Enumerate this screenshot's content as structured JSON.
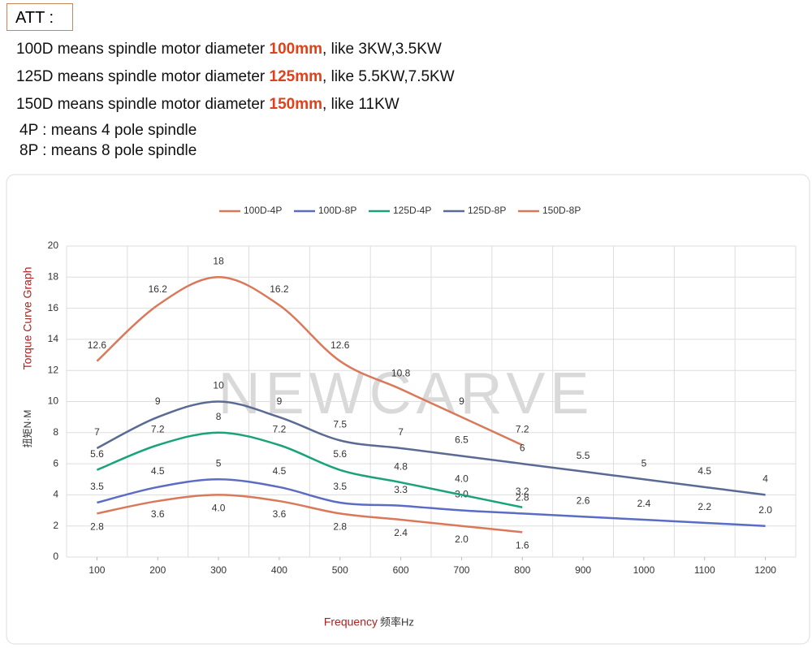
{
  "header": {
    "title": "ATT :",
    "lines": [
      {
        "text": "100D means spindle motor diameter",
        "size": "100mm",
        "note": ", like 3KW,3.5KW"
      },
      {
        "text": "125D means spindle motor diameter",
        "size": "125mm",
        "note": ", like 5.5KW,7.5KW"
      },
      {
        "text": "150D means spindle motor diameter",
        "size": "150mm",
        "note": ", like 11KW"
      }
    ],
    "poles": [
      "4P : means 4 pole spindle",
      "8P : means 8 pole spindle"
    ]
  },
  "chart_data": {
    "type": "line",
    "watermark": "NEWCARVE",
    "y_label": "Torque Curve Graph",
    "y_unit_label": "扭矩N·M",
    "x_label": "Frequency",
    "x_unit_label": "频率Hz",
    "x": [
      100,
      200,
      300,
      400,
      500,
      600,
      700,
      800,
      900,
      1000,
      1100,
      1200
    ],
    "xlim": [
      50,
      1250
    ],
    "xticks": [
      100,
      200,
      300,
      400,
      500,
      600,
      700,
      800,
      900,
      1000,
      1100,
      1200
    ],
    "ylim": [
      0,
      20
    ],
    "yticks": [
      0,
      2,
      4,
      6,
      8,
      10,
      12,
      14,
      16,
      18,
      20
    ],
    "grid": true,
    "legend": "top",
    "series": [
      {
        "name": "100D-4P",
        "color": "#d9795a",
        "values": [
          12.6,
          16.2,
          18,
          16.2,
          12.6,
          10.8,
          9,
          7.2,
          null,
          null,
          null,
          null
        ],
        "value_labels": [
          "12.6",
          "16.2",
          "18",
          "16.2",
          "12.6",
          "10.8",
          "9",
          "7.2",
          null,
          null,
          null,
          null
        ]
      },
      {
        "name": "100D-8P",
        "color": "#5b6cc4",
        "values": [
          3.5,
          4.5,
          5,
          4.5,
          3.5,
          3.3,
          3,
          2.8,
          2.6,
          2.4,
          2.2,
          2
        ],
        "value_labels": [
          "3.5",
          "4.5",
          "5",
          "4.5",
          "3.5",
          "3.3",
          "3.0",
          "2.8",
          "2.6",
          "2.4",
          "2.2",
          "2.0"
        ]
      },
      {
        "name": "125D-4P",
        "color": "#1aa37a",
        "values": [
          5.6,
          7.2,
          8,
          7.2,
          5.6,
          4.8,
          4,
          3.2,
          null,
          null,
          null,
          null
        ],
        "value_labels": [
          "5.6",
          "7.2",
          "8",
          "7.2",
          "5.6",
          "4.8",
          "4.0",
          "3.2",
          null,
          null,
          null,
          null
        ]
      },
      {
        "name": "125D-8P",
        "color": "#5a6a94",
        "values": [
          7,
          9,
          10,
          9,
          7.5,
          7,
          6.5,
          6,
          5.5,
          5,
          4.5,
          4
        ],
        "value_labels": [
          "7",
          "9",
          "10",
          "9",
          "7.5",
          "7",
          "6.5",
          "6",
          "5.5",
          "5",
          "4.5",
          "4"
        ]
      },
      {
        "name": "150D-8P",
        "color": "#d9795a",
        "values": [
          2.8,
          3.6,
          4,
          3.6,
          2.8,
          2.4,
          2,
          1.6,
          null,
          null,
          null,
          null
        ],
        "value_labels": [
          "2.8",
          "3.6",
          "4.0",
          "3.6",
          "2.8",
          "2.4",
          "2.0",
          "1.6",
          null,
          null,
          null,
          null
        ]
      }
    ]
  }
}
